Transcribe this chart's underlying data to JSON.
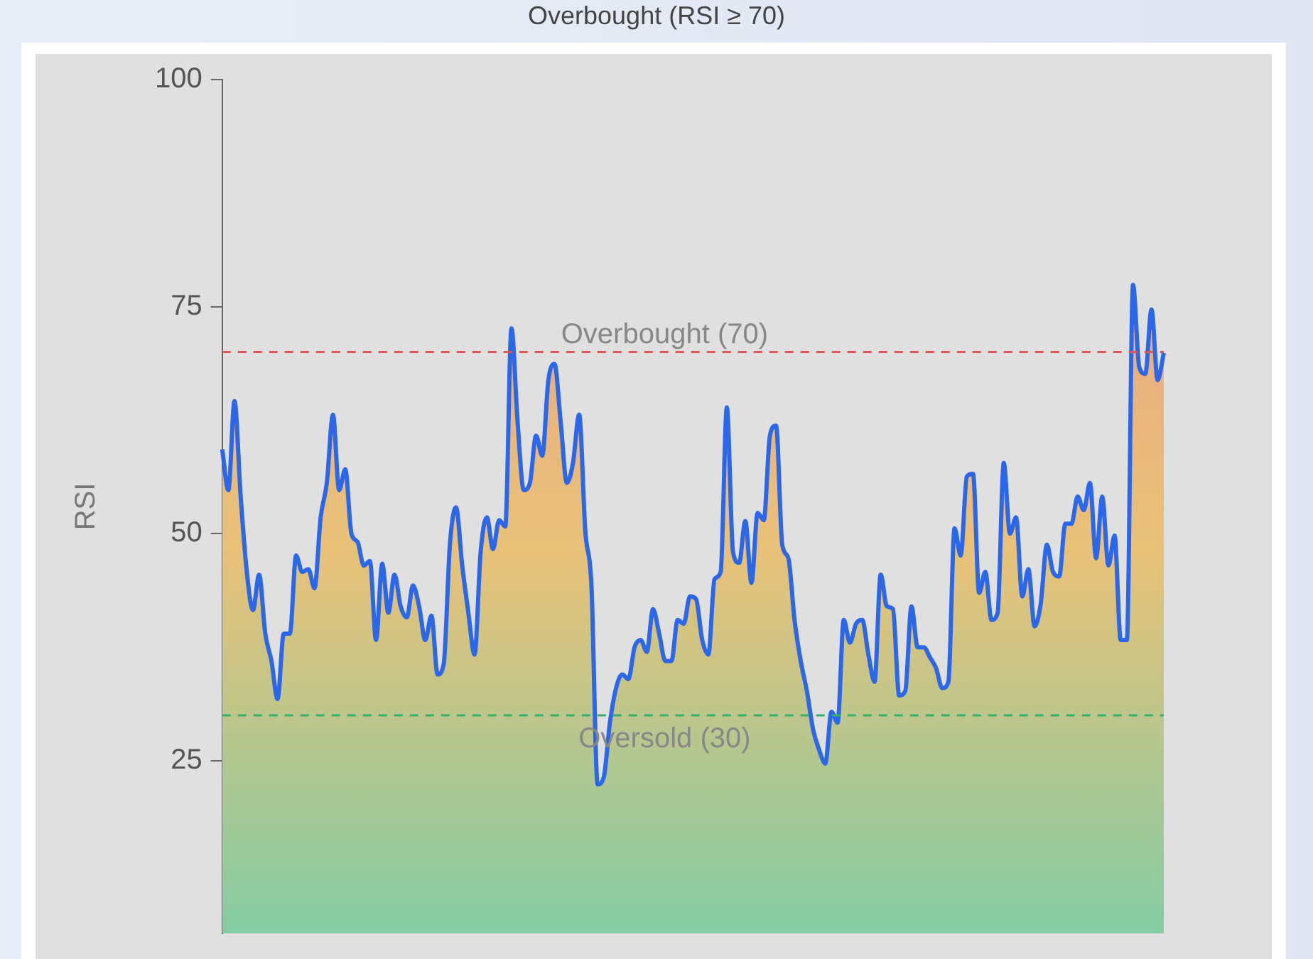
{
  "chart_data": {
    "type": "area",
    "title": "Overbought (RSI ≥ 70)",
    "ylabel": "RSI",
    "categories": [
      null,
      null,
      null,
      null,
      null,
      null,
      null,
      null,
      null,
      null,
      null,
      null,
      null,
      null,
      null,
      null,
      null,
      null,
      null,
      null,
      null,
      null,
      null,
      null,
      null,
      null,
      null,
      null,
      null,
      null,
      null,
      null,
      null,
      null,
      null,
      null,
      null,
      null,
      null,
      null,
      null,
      null,
      null,
      null,
      null,
      null,
      null,
      null,
      null,
      null,
      null,
      null,
      null,
      null,
      null,
      null,
      null,
      null,
      null,
      null,
      null,
      null,
      null,
      null,
      null,
      null,
      null,
      null,
      null,
      null,
      null,
      null,
      null,
      null,
      null,
      null,
      null,
      null,
      null,
      null,
      null,
      null,
      null,
      null,
      null,
      null,
      null,
      null,
      null,
      null,
      null,
      null,
      null,
      null,
      null,
      null,
      null,
      null,
      null,
      null,
      null,
      null,
      null,
      null,
      null,
      null,
      null,
      null,
      null,
      null,
      null,
      null,
      null,
      null,
      null,
      null,
      null,
      null,
      null,
      null,
      null,
      null,
      null,
      null,
      null,
      null,
      null,
      null,
      null,
      null,
      null,
      null,
      null,
      null,
      null,
      null,
      null,
      null,
      null,
      null,
      null,
      null,
      null,
      null,
      null,
      null,
      null,
      null,
      null,
      null,
      null,
      null,
      null,
      null
    ],
    "series": [
      {
        "color": "#2b67e8",
        "values": [
          59.3,
          54.8,
          64.6,
          54.1,
          45.8,
          41.6,
          45.5,
          39.0,
          36.0,
          31.8,
          39.0,
          39.0,
          47.6,
          45.8,
          46.1,
          44.0,
          51.8,
          55.6,
          63.1,
          54.8,
          57.1,
          50.0,
          49.1,
          46.5,
          47.0,
          38.3,
          46.7,
          41.3,
          45.5,
          42.0,
          40.8,
          44.3,
          42.0,
          38.3,
          41.0,
          34.5,
          35.7,
          48.8,
          52.9,
          46.5,
          41.3,
          36.7,
          48.0,
          51.8,
          48.3,
          51.5,
          50.8,
          72.6,
          62.3,
          54.8,
          55.6,
          60.8,
          58.6,
          66.9,
          68.7,
          62.3,
          55.6,
          57.8,
          63.1,
          50.3,
          44.3,
          22.4,
          23.2,
          29.2,
          33.0,
          34.5,
          34.0,
          37.5,
          38.3,
          37.0,
          41.7,
          39.0,
          36.0,
          36.0,
          40.5,
          40.1,
          43.1,
          42.8,
          38.3,
          36.7,
          45.0,
          45.8,
          63.9,
          48.0,
          46.8,
          51.4,
          44.6,
          52.3,
          51.5,
          60.8,
          61.9,
          48.8,
          47.3,
          40.5,
          36.0,
          32.7,
          28.5,
          26.2,
          24.7,
          30.4,
          29.2,
          40.5,
          38.0,
          40.1,
          40.5,
          36.7,
          33.7,
          45.5,
          42.0,
          41.7,
          32.2,
          32.7,
          42.0,
          37.5,
          37.5,
          36.4,
          35.2,
          33.0,
          33.7,
          50.6,
          47.6,
          56.3,
          56.6,
          43.5,
          45.8,
          40.5,
          41.3,
          57.8,
          50.0,
          51.8,
          43.1,
          46.1,
          39.8,
          42.3,
          48.8,
          45.8,
          45.3,
          51.1,
          51.1,
          54.1,
          52.6,
          55.6,
          47.3,
          54.1,
          46.5,
          49.8,
          38.3,
          38.3,
          77.4,
          68.4,
          67.6,
          74.7,
          66.9,
          69.9
        ]
      }
    ],
    "ylim": [
      6,
      100
    ],
    "yticks": [
      25,
      50,
      75,
      100
    ],
    "grid": false,
    "legend": false,
    "tick_labels": "y",
    "marker": "none",
    "line_style": "solid",
    "ref_lines": [
      {
        "axis": "y",
        "value": 70,
        "label": "Overbought (70)",
        "color": "#e05555",
        "line_style": "dashed"
      },
      {
        "axis": "y",
        "value": 30,
        "label": "Oversold (30)",
        "color": "#35b06a",
        "line_style": "dashed"
      }
    ]
  }
}
